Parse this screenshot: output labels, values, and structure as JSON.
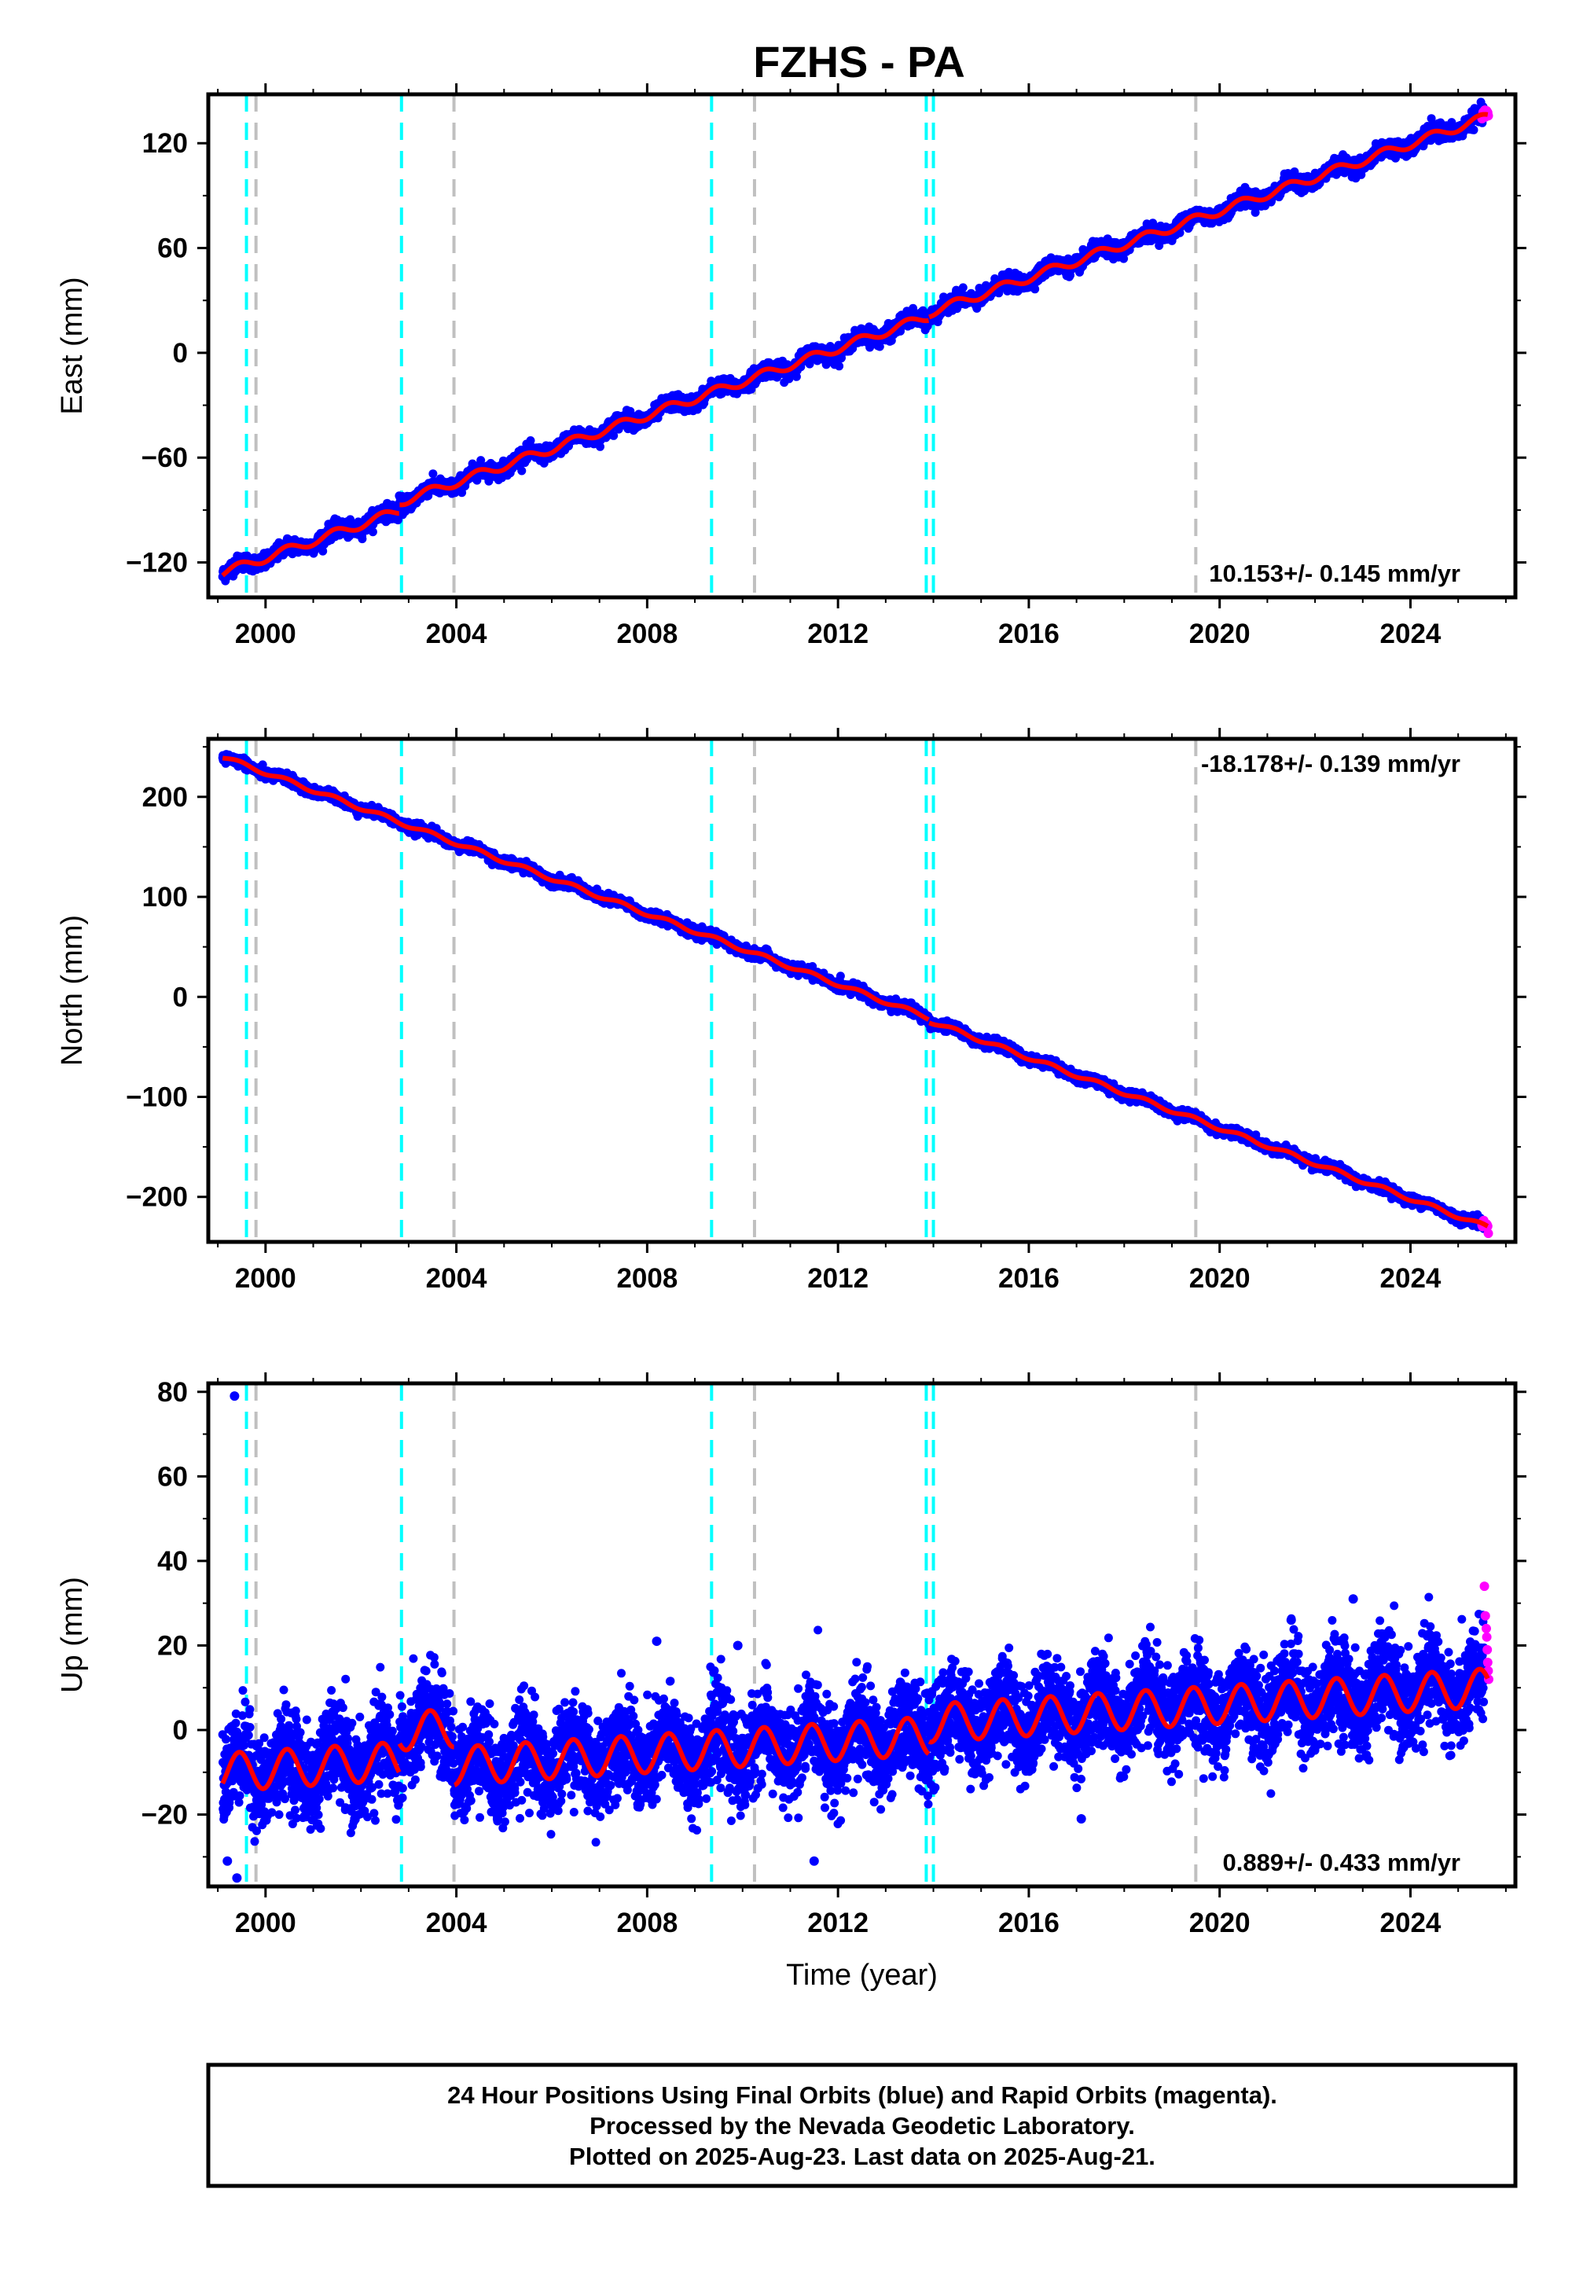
{
  "title": "FZHS - PA",
  "footer": {
    "lines": [
      "24 Hour Positions Using Final Orbits (blue) and Rapid Orbits (magenta).",
      "Processed by the Nevada Geodetic Laboratory.",
      "Plotted on 2025-Aug-23. Last data on 2025-Aug-21."
    ]
  },
  "colors": {
    "final_orbits": "#0000ff",
    "rapid_orbits": "#ff00ff",
    "model": "#ff0000",
    "equipment_change": "#00ffff",
    "other_event": "#c0c0c0"
  },
  "chart_data": [
    {
      "type": "scatter",
      "component": "east",
      "ylabel": "East (mm)",
      "xlabel": "",
      "xlim": [
        1998.8,
        2026.2
      ],
      "ylim": [
        -140,
        148
      ],
      "xticks": [
        "2000",
        "2004",
        "2008",
        "2012",
        "2016",
        "2020",
        "2024"
      ],
      "yticks": [
        "−120",
        "−60",
        "0",
        "60",
        "120"
      ],
      "ytick_values": [
        -120,
        -60,
        0,
        60,
        120
      ],
      "rate_label": "10.153+/- 0.145 mm/yr",
      "rate_placement": "bottom-right",
      "model": {
        "trend_at_start": -126,
        "trend_at_end": 135,
        "trend_start_year": 1999.1,
        "trend_end_year": 2025.6,
        "seasonal_amplitude": 2.5,
        "scatter": 2.2,
        "steps": [
          {
            "year": 2002.8,
            "offset": 5
          },
          {
            "year": 2013.9,
            "offset": 2
          }
        ]
      }
    },
    {
      "type": "scatter",
      "component": "north",
      "ylabel": "North (mm)",
      "xlabel": "",
      "xlim": [
        1998.8,
        2026.2
      ],
      "ylim": [
        -245,
        258
      ],
      "xticks": [
        "2000",
        "2004",
        "2008",
        "2012",
        "2016",
        "2020",
        "2024"
      ],
      "yticks": [
        "−200",
        "−100",
        "0",
        "100",
        "200"
      ],
      "ytick_values": [
        -200,
        -100,
        0,
        100,
        200
      ],
      "rate_label": "-18.178+/- 0.139 mm/yr",
      "rate_placement": "top-right",
      "model": {
        "trend_at_start": 240,
        "trend_at_end": -230,
        "trend_start_year": 1999.1,
        "trend_end_year": 2025.6,
        "seasonal_amplitude": 2.0,
        "scatter": 2.5,
        "steps": [
          {
            "year": 2013.9,
            "offset": -3
          }
        ]
      }
    },
    {
      "type": "scatter",
      "component": "up",
      "ylabel": "Up (mm)",
      "xlabel": "Time (year)",
      "xlim": [
        1998.8,
        2026.2
      ],
      "ylim": [
        -37,
        82
      ],
      "xticks": [
        "2000",
        "2004",
        "2008",
        "2012",
        "2016",
        "2020",
        "2024"
      ],
      "yticks": [
        "−20",
        "0",
        "20",
        "40",
        "60",
        "80"
      ],
      "ytick_values": [
        -20,
        0,
        20,
        40,
        60,
        80
      ],
      "rate_label": "0.889+/- 0.433 mm/yr",
      "rate_placement": "bottom-right",
      "model": {
        "trend_at_start": -10,
        "trend_at_end": 10,
        "trend_start_year": 1999.1,
        "trend_end_year": 2025.6,
        "seasonal_amplitude": 4.5,
        "scatter": 5.5,
        "steps": [
          {
            "year": 2002.8,
            "offset": 7
          },
          {
            "year": 2003.95,
            "offset": -9
          },
          {
            "year": 2013.9,
            "offset": 3
          }
        ]
      },
      "outliers": [
        {
          "x": 1999.35,
          "y": 79
        },
        {
          "x": 1999.4,
          "y": -35
        },
        {
          "x": 1999.2,
          "y": -31
        },
        {
          "x": 2008.2,
          "y": 21
        },
        {
          "x": 2009.9,
          "y": 20
        },
        {
          "x": 2022.8,
          "y": 31
        },
        {
          "x": 2021.5,
          "y": 26
        },
        {
          "x": 2011.5,
          "y": -31
        },
        {
          "x": 2017.1,
          "y": -21
        }
      ],
      "rapid_points": [
        {
          "x": 2025.55,
          "y": 34
        },
        {
          "x": 2025.57,
          "y": 27
        },
        {
          "x": 2025.59,
          "y": 24
        },
        {
          "x": 2025.6,
          "y": 22
        },
        {
          "x": 2025.61,
          "y": 19
        },
        {
          "x": 2025.62,
          "y": 16
        },
        {
          "x": 2025.63,
          "y": 14
        },
        {
          "x": 2025.64,
          "y": 12
        }
      ]
    }
  ],
  "events": {
    "equipment_change": [
      1999.6,
      2002.85,
      2009.35,
      2013.85,
      2014.0
    ],
    "other": [
      1999.8,
      2003.95,
      2010.25,
      2019.5
    ]
  }
}
